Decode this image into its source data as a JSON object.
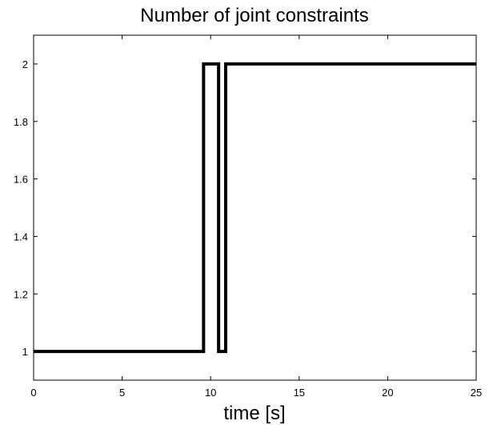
{
  "chart_data": {
    "type": "line",
    "title": "Number of joint constraints",
    "xlabel": "time [s]",
    "ylabel": "",
    "xlim": [
      0,
      25
    ],
    "ylim": [
      0.9,
      2.1
    ],
    "xticks": [
      0,
      5,
      10,
      15,
      20,
      25
    ],
    "yticks": [
      1,
      1.2,
      1.4,
      1.6,
      1.8,
      2
    ],
    "xtick_labels": [
      "0",
      "5",
      "10",
      "15",
      "20",
      "25"
    ],
    "ytick_labels": [
      "1",
      "1.2",
      "1.4",
      "1.6",
      "1.8",
      "2"
    ],
    "grid": false,
    "series": [
      {
        "x": [
          0,
          9.6,
          9.6,
          10.45,
          10.45,
          10.85,
          10.85,
          25
        ],
        "y": [
          1,
          1,
          2,
          2,
          1,
          1,
          2,
          2
        ],
        "color": "#000000",
        "step": true
      }
    ]
  }
}
